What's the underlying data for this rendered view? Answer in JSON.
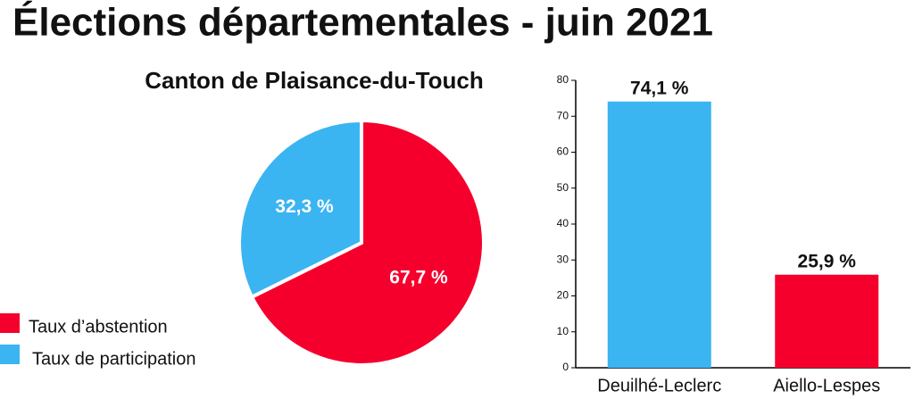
{
  "title": "Élections départementales - juin 2021",
  "chart_data": [
    {
      "type": "pie",
      "title": "Canton de Plaisance-du-Touch",
      "categories": [
        "Taux d’abstention",
        "Taux de participation"
      ],
      "values": [
        67.7,
        32.3
      ],
      "value_labels": [
        "67,7 %",
        "32,3 %"
      ],
      "colors": [
        "#f5002d",
        "#3bb4f2"
      ],
      "legend": "bottom-left"
    },
    {
      "type": "bar",
      "categories": [
        "Deuilhé-Leclerc",
        "Aiello-Lespes"
      ],
      "values": [
        74.1,
        25.9
      ],
      "value_labels": [
        "74,1 %",
        "25,9 %"
      ],
      "colors": [
        "#3bb4f2",
        "#f5002d"
      ],
      "ylim": [
        0,
        80
      ],
      "yticks": [
        0,
        10,
        20,
        30,
        40,
        50,
        60,
        70,
        80
      ],
      "grid": false
    }
  ]
}
